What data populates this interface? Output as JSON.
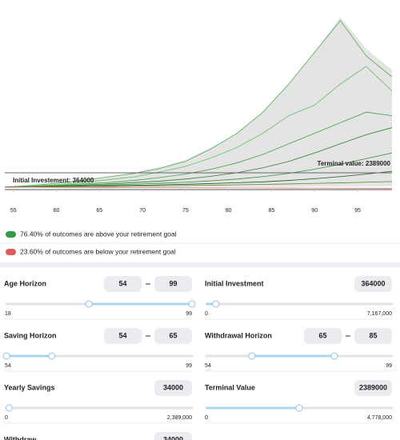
{
  "chart_data": {
    "type": "line",
    "x": [
      54,
      57,
      60,
      63,
      66,
      69,
      72,
      75,
      78,
      81,
      84,
      87,
      90,
      93,
      96,
      99
    ],
    "xlim": [
      54,
      99
    ],
    "xticks": [
      55,
      60,
      65,
      70,
      75,
      80,
      85,
      90,
      95
    ],
    "ylim": [
      0,
      25000000
    ],
    "envelope": {
      "color": "#e4e4e4",
      "upper": [
        364000,
        600000,
        900000,
        1300000,
        1800000,
        2400000,
        3200000,
        4200000,
        6000000,
        8000000,
        11000000,
        15000000,
        19500000,
        24500000,
        20000000,
        17000000
      ],
      "lower": [
        364000,
        300000,
        300000,
        320000,
        330000,
        340000,
        350000,
        360000,
        370000,
        380000,
        390000,
        400000,
        420000,
        440000,
        460000,
        480000
      ]
    },
    "series": [
      {
        "color": "#4caf50",
        "values": [
          364000,
          600000,
          900000,
          1300000,
          1800000,
          2300000,
          3000000,
          4000000,
          5800000,
          8000000,
          11000000,
          15000000,
          19500000,
          24000000,
          19000000,
          16000000
        ]
      },
      {
        "color": "#66bb6a",
        "values": [
          364000,
          500000,
          700000,
          1000000,
          1400000,
          1800000,
          2500000,
          3300000,
          4500000,
          6000000,
          8000000,
          10500000,
          12000000,
          15000000,
          17500000,
          14000000
        ]
      },
      {
        "color": "#43a047",
        "values": [
          364000,
          450000,
          600000,
          800000,
          1000000,
          1300000,
          1700000,
          2200000,
          2900000,
          3800000,
          5000000,
          6500000,
          8000000,
          9500000,
          11000000,
          10500000
        ]
      },
      {
        "color": "#2e7d32",
        "values": [
          364000,
          420000,
          520000,
          650000,
          800000,
          1000000,
          1200000,
          1500000,
          1900000,
          2400000,
          3100000,
          4000000,
          5200000,
          6500000,
          7800000,
          8800000
        ]
      },
      {
        "color": "#388e3c",
        "values": [
          364000,
          400000,
          470000,
          560000,
          660000,
          780000,
          900000,
          1050000,
          1250000,
          1500000,
          1850000,
          2300000,
          2900000,
          3600000,
          4400000,
          5200000
        ]
      },
      {
        "color": "#1b5e20",
        "values": [
          364000,
          380000,
          430000,
          480000,
          540000,
          600000,
          680000,
          760000,
          860000,
          980000,
          1100000,
          1300000,
          1550000,
          1850000,
          2200000,
          2600000
        ]
      },
      {
        "color": "#558b2f",
        "values": [
          364000,
          370000,
          400000,
          430000,
          460000,
          500000,
          540000,
          580000,
          620000,
          680000,
          740000,
          800000,
          880000,
          960000,
          1050000,
          1150000
        ]
      },
      {
        "color": "#e57373",
        "values": [
          364000,
          340000,
          320000,
          300000,
          290000,
          280000,
          270000,
          260000,
          250000,
          240000,
          230000,
          220000,
          210000,
          200000,
          190000,
          180000
        ]
      }
    ],
    "goal_line": 2389000,
    "annotations": [
      "Initial Investement: 364000",
      "Terminal value: 2389000"
    ]
  },
  "legend": [
    {
      "color": "#2e9e46",
      "text": "76.40% of outcomes are above your retirement goal"
    },
    {
      "color": "#e05a5a",
      "text": "23.60% of outcomes are below your retirement goal"
    }
  ],
  "controls": [
    {
      "label": "Age Horizon",
      "values": [
        54,
        99
      ],
      "min": 18,
      "max": 99
    },
    {
      "label": "Initial Investment",
      "values": [
        364000
      ],
      "min": 0,
      "max": {
        "value": 7167000,
        "label": "7,167,000"
      }
    },
    {
      "label": "Saving Horizon",
      "values": [
        54,
        65
      ],
      "min": 54,
      "max": 99
    },
    {
      "label": "Withdrawal Horizon",
      "values": [
        65,
        85
      ],
      "min": 54,
      "max": 99
    },
    {
      "label": "Yearly Savings",
      "values": [
        34000
      ],
      "min": 0,
      "max": {
        "value": 2389000,
        "label": "2,389,000"
      }
    },
    {
      "label": "Terminal Value",
      "values": [
        2389000
      ],
      "min": 0,
      "max": {
        "value": 4778000,
        "label": "4,778,000"
      }
    },
    {
      "label": "Withdraw",
      "values": [
        34000
      ]
    }
  ]
}
